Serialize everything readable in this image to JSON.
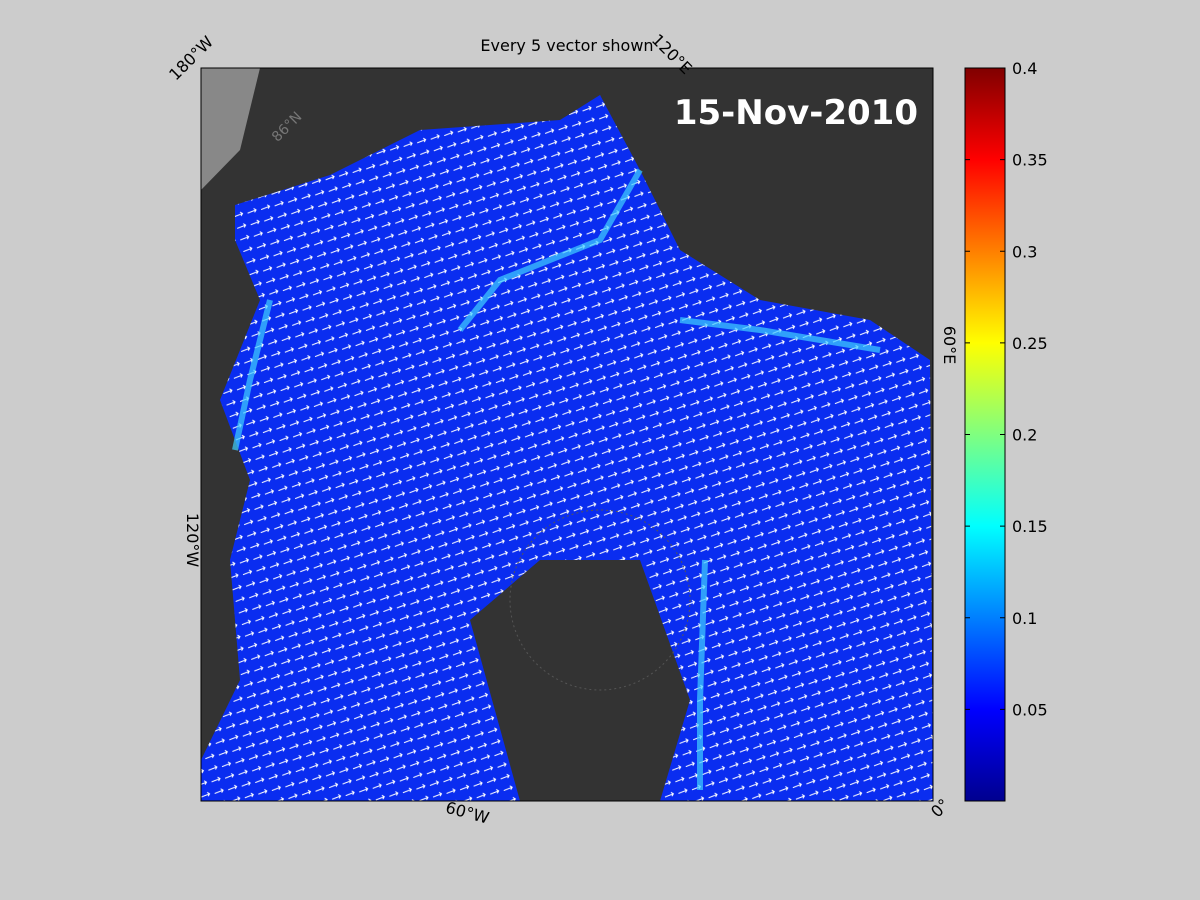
{
  "title": "Every 5 vector shown",
  "date_label": "15-Nov-2010",
  "map": {
    "lon_labels": [
      "180°W",
      "120°E",
      "60°E",
      "0°",
      "60°W",
      "120°W"
    ],
    "lat_labels": [
      "86°N"
    ]
  },
  "colorbar": {
    "lim": [
      0,
      0.4
    ],
    "ticks": [
      0.05,
      0.1,
      0.15,
      0.2,
      0.25,
      0.3,
      0.35,
      0.4
    ]
  }
}
